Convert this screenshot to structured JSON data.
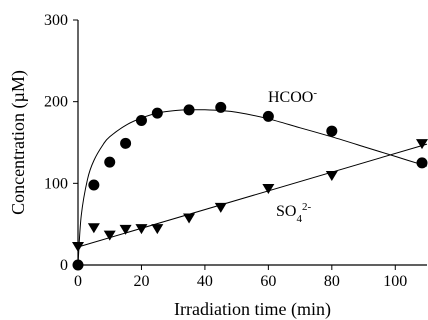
{
  "chart_data": {
    "type": "scatter",
    "title": "",
    "xlabel": "Irradiation time (min)",
    "ylabel": "Concentration (µM)",
    "xlim": [
      0,
      110
    ],
    "ylim": [
      0,
      300
    ],
    "x_ticks": [
      "0",
      "20",
      "40",
      "60",
      "80",
      "100"
    ],
    "y_ticks": [
      "0",
      "100",
      "200",
      "300"
    ],
    "grid": false,
    "series": [
      {
        "name": "HCOO",
        "name_sup": "-",
        "marker": "circle",
        "x": [
          0,
          5,
          10,
          15,
          20,
          25,
          35,
          45,
          60,
          80,
          110
        ],
        "y": [
          0,
          98,
          126,
          149,
          177,
          186,
          190,
          193,
          182,
          164,
          125
        ],
        "fit": {
          "x": [
            0,
            1,
            3,
            5,
            8,
            10,
            15,
            20,
            25,
            30,
            35,
            40,
            45,
            50,
            60,
            70,
            80,
            90,
            100,
            110
          ],
          "y": [
            0,
            60,
            105,
            128,
            148,
            157,
            171,
            180,
            186,
            189,
            190,
            190,
            189,
            187,
            179,
            168,
            157,
            145,
            133,
            121
          ]
        }
      },
      {
        "name": "SO",
        "name_sub": "4",
        "name_sup": "2-",
        "marker": "triangle-down",
        "x": [
          0,
          5,
          10,
          15,
          20,
          25,
          35,
          45,
          60,
          80,
          110
        ],
        "y": [
          22,
          45,
          36,
          43,
          44,
          44,
          57,
          70,
          93,
          109,
          148
        ],
        "fit": {
          "x": [
            0,
            110
          ],
          "y": [
            22,
            148
          ]
        }
      }
    ]
  }
}
